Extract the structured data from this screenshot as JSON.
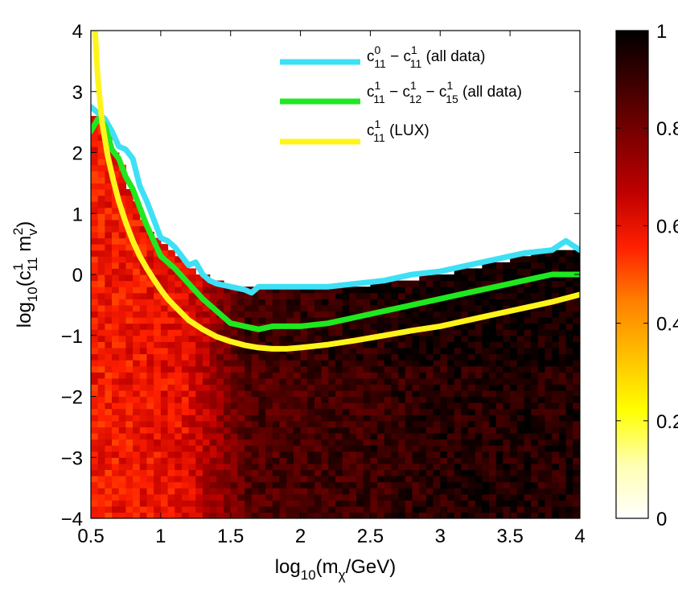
{
  "chart_data": {
    "type": "heatmap",
    "xlabel": {
      "base": "log",
      "base_sub": "10",
      "pre": "(m",
      "sub": "χ",
      "post": "/GeV)"
    },
    "ylabel": {
      "base": "log",
      "base_sub": "10",
      "pre": "(c",
      "sup1": "1",
      "sub1": "11",
      "mid": " m",
      "sub2": "v",
      "sup2": "2",
      "post": ")"
    },
    "xlim": [
      0.5,
      4
    ],
    "ylim": [
      -4,
      4
    ],
    "xticks": [
      "0.5",
      "1",
      "1.5",
      "2",
      "2.5",
      "3",
      "3.5",
      "4"
    ],
    "yticks": [
      "4",
      "3",
      "2",
      "1",
      "0",
      "−1",
      "−2",
      "−3",
      "−4"
    ],
    "colorbar": {
      "range": [
        0,
        1
      ],
      "ticks": [
        "1",
        "0.8",
        "0.6",
        "0.4",
        "0.2",
        "0"
      ],
      "colormap": [
        "#ffffff",
        "#ffffb0",
        "#ffff00",
        "#ffc000",
        "#ff8000",
        "#ff2000",
        "#c00000",
        "#800000",
        "#400000",
        "#000000"
      ]
    },
    "heatmap_boundary": {
      "x": [
        0.5,
        0.55,
        0.6,
        0.7,
        0.8,
        0.9,
        1.0,
        1.1,
        1.2,
        1.3,
        1.4,
        1.5,
        1.6,
        1.7,
        2.0,
        2.5,
        3.0,
        3.5,
        3.8,
        4.0
      ],
      "y": [
        2.7,
        2.5,
        2.4,
        1.9,
        1.3,
        0.8,
        0.55,
        0.4,
        0.1,
        0.0,
        -0.1,
        -0.2,
        -0.15,
        -0.2,
        -0.2,
        -0.15,
        0.0,
        0.25,
        0.45,
        0.4
      ]
    },
    "series": [
      {
        "name": "cyan",
        "color": "#3ee0f5",
        "legend": {
          "a": "c",
          "a_sup": "0",
          "a_sub": "11",
          "sep1": " − c",
          "b_sup": "1",
          "b_sub": "11",
          "tail": " (all data)"
        },
        "x": [
          0.5,
          0.55,
          0.6,
          0.65,
          0.7,
          0.75,
          0.8,
          0.85,
          0.9,
          0.95,
          1.0,
          1.05,
          1.1,
          1.15,
          1.2,
          1.25,
          1.3,
          1.35,
          1.4,
          1.5,
          1.6,
          1.65,
          1.7,
          1.8,
          2.0,
          2.2,
          2.4,
          2.6,
          2.8,
          3.0,
          3.2,
          3.4,
          3.6,
          3.8,
          3.9,
          4.0
        ],
        "y": [
          2.75,
          2.65,
          2.55,
          2.35,
          2.1,
          2.05,
          1.9,
          1.45,
          1.2,
          0.9,
          0.6,
          0.55,
          0.45,
          0.3,
          0.15,
          0.2,
          0.0,
          -0.1,
          -0.15,
          -0.2,
          -0.25,
          -0.3,
          -0.2,
          -0.2,
          -0.2,
          -0.2,
          -0.15,
          -0.1,
          0.0,
          0.05,
          0.15,
          0.25,
          0.35,
          0.4,
          0.55,
          0.4
        ]
      },
      {
        "name": "green",
        "color": "#1fe81f",
        "legend": {
          "a": "c",
          "a_sup": "1",
          "a_sub": "11",
          "sep1": " − c",
          "b_sup": "1",
          "b_sub": "12",
          "sep2": " − c",
          "c_sup": "1",
          "c_sub": "15",
          "tail": " (all data)"
        },
        "x": [
          0.5,
          0.55,
          0.6,
          0.65,
          0.7,
          0.75,
          0.8,
          0.85,
          0.9,
          0.95,
          1.0,
          1.1,
          1.2,
          1.3,
          1.4,
          1.5,
          1.6,
          1.7,
          1.8,
          1.9,
          2.0,
          2.2,
          2.4,
          2.6,
          2.8,
          3.0,
          3.2,
          3.4,
          3.6,
          3.8,
          4.0
        ],
        "y": [
          2.35,
          2.55,
          2.45,
          2.05,
          1.9,
          1.6,
          1.4,
          1.1,
          0.8,
          0.55,
          0.3,
          0.1,
          -0.15,
          -0.4,
          -0.6,
          -0.8,
          -0.85,
          -0.9,
          -0.85,
          -0.85,
          -0.85,
          -0.8,
          -0.7,
          -0.6,
          -0.5,
          -0.4,
          -0.3,
          -0.2,
          -0.1,
          0.0,
          0.0
        ]
      },
      {
        "name": "yellow",
        "color": "#fff41a",
        "legend": {
          "a": "c",
          "a_sup": "1",
          "a_sub": "11",
          "tail": " (LUX)"
        },
        "x": [
          0.53,
          0.55,
          0.58,
          0.62,
          0.66,
          0.7,
          0.75,
          0.8,
          0.85,
          0.9,
          0.95,
          1.0,
          1.05,
          1.1,
          1.2,
          1.3,
          1.4,
          1.5,
          1.6,
          1.7,
          1.8,
          1.9,
          2.0,
          2.2,
          2.4,
          2.6,
          2.8,
          3.0,
          3.2,
          3.4,
          3.6,
          3.8,
          4.0
        ],
        "y": [
          4.0,
          3.2,
          2.5,
          1.95,
          1.55,
          1.2,
          0.85,
          0.55,
          0.3,
          0.1,
          -0.08,
          -0.25,
          -0.4,
          -0.52,
          -0.75,
          -0.9,
          -1.02,
          -1.1,
          -1.16,
          -1.2,
          -1.22,
          -1.22,
          -1.2,
          -1.15,
          -1.08,
          -1.0,
          -0.92,
          -0.85,
          -0.75,
          -0.65,
          -0.55,
          -0.45,
          -0.33
        ]
      }
    ]
  }
}
